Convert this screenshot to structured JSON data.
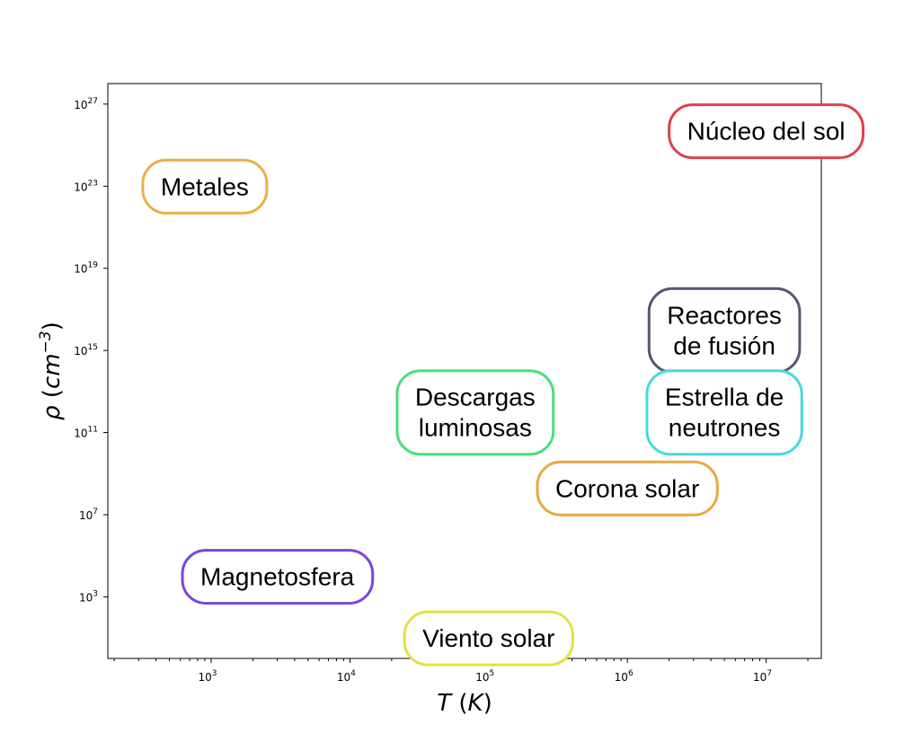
{
  "chart_data": {
    "type": "scatter",
    "xlabel": "T (K)",
    "ylabel": "ρ (cm⁻³)",
    "xscale": "log",
    "yscale": "log",
    "xlim": [
      180,
      25000000
    ],
    "ylim": [
      1.0,
      1e+28
    ],
    "x_ticks": [
      {
        "base": "10",
        "exp": "3"
      },
      {
        "base": "10",
        "exp": "4"
      },
      {
        "base": "10",
        "exp": "5"
      },
      {
        "base": "10",
        "exp": "6"
      },
      {
        "base": "10",
        "exp": "7"
      }
    ],
    "y_ticks": [
      {
        "base": "10",
        "exp": "3"
      },
      {
        "base": "10",
        "exp": "7"
      },
      {
        "base": "10",
        "exp": "11"
      },
      {
        "base": "10",
        "exp": "15"
      },
      {
        "base": "10",
        "exp": "19"
      },
      {
        "base": "10",
        "exp": "23"
      },
      {
        "base": "10",
        "exp": "27"
      }
    ],
    "grid": false,
    "regions": [
      {
        "lines": [
          "Núcleo del sol"
        ],
        "color": "#e0404a",
        "x": 10000000.0,
        "y": 5e+25,
        "x_range": [
          900000.0,
          15000000.0
        ],
        "y_range": [
          3e+24,
          1e+27
        ]
      },
      {
        "lines": [
          "Metales"
        ],
        "color": "#eab045",
        "x": 900,
        "y": 1e+23,
        "x_range": [
          200,
          2000
        ],
        "y_range": [
          1e+22,
          3e+24
        ]
      },
      {
        "lines": [
          "Reactores",
          "de fusión"
        ],
        "color": "#5a5570",
        "x": 5000000.0,
        "y": 1e+16,
        "x_range": [
          2000000.0,
          16000000.0
        ],
        "y_range": [
          100000000000000.0,
          1e+18
        ]
      },
      {
        "lines": [
          "Estrella de",
          "neutrones"
        ],
        "color": "#45d8e0",
        "x": 5000000.0,
        "y": 1000000000000.0,
        "x_range": [
          2000000.0,
          15000000.0
        ],
        "y_range": [
          10000000000.0,
          100000000000000.0
        ]
      },
      {
        "lines": [
          "Descargas",
          "luminosas"
        ],
        "color": "#45e07a",
        "x": 80000.0,
        "y": 1000000000000.0,
        "x_range": [
          10000.0,
          200000.0
        ],
        "y_range": [
          10000000000.0,
          100000000000000.0
        ]
      },
      {
        "lines": [
          "Corona solar"
        ],
        "color": "#e8a845",
        "x": 1000000.0,
        "y": 200000000.0,
        "x_range": [
          100000.0,
          3000000.0
        ],
        "y_range": [
          10000000.0,
          1000000000.0
        ]
      },
      {
        "lines": [
          "Magnetosfera"
        ],
        "color": "#7a45e0",
        "x": 3000,
        "y": 10000.0,
        "x_range": [
          200,
          5000
        ],
        "y_range": [
          100.0,
          100000.0
        ]
      },
      {
        "lines": [
          "Viento solar"
        ],
        "color": "#e5e045",
        "x": 100000.0,
        "y": 10.0,
        "x_range": [
          10000.0,
          500000.0
        ],
        "y_range": [
          1.0,
          100.0
        ]
      }
    ]
  }
}
